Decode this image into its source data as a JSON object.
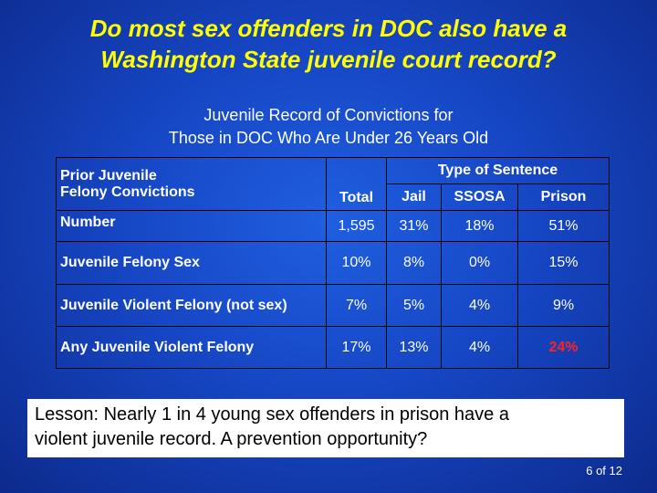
{
  "title_line1": "Do most sex offenders in DOC also have a",
  "title_line2": "Washington State juvenile court record?",
  "subtitle_line1": "Juvenile Record of Convictions for",
  "subtitle_line2": "Those in DOC Who Are Under 26 Years Old",
  "table": {
    "header_label_line1": "Prior Juvenile",
    "header_label_line2": "Felony Convictions",
    "type_of_sentence": "Type of Sentence",
    "columns": [
      "Total",
      "Jail",
      "SSOSA",
      "Prison"
    ],
    "rows": [
      {
        "label": "Number",
        "values": [
          "1,595",
          "31%",
          "18%",
          "51%"
        ]
      },
      {
        "label": "Juvenile Felony Sex",
        "values": [
          "10%",
          "8%",
          "0%",
          "15%"
        ]
      },
      {
        "label": "Juvenile Violent Felony (not sex)",
        "values": [
          "7%",
          "5%",
          "4%",
          "9%"
        ]
      },
      {
        "label": "Any Juvenile Violent Felony",
        "values": [
          "17%",
          "13%",
          "4%",
          "24%"
        ]
      }
    ],
    "highlight_color": "#ff2222"
  },
  "lesson_line1": "Lesson:  Nearly 1 in 4 young sex offenders in prison have a",
  "lesson_line2": "violent juvenile record.  A prevention opportunity?",
  "page_number": "6 of 12"
}
